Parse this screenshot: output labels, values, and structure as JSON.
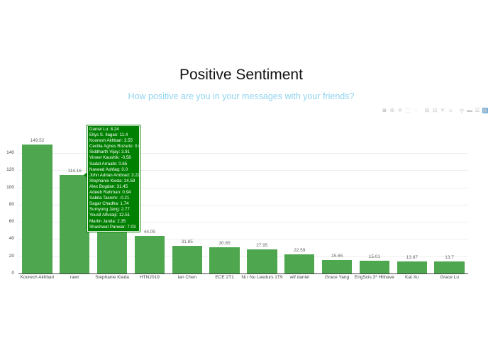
{
  "chart_data": {
    "type": "bar",
    "title": "Positive Sentiment",
    "subtitle": "How positive are you in your messages with your friends?",
    "xlabel": "",
    "ylabel": "",
    "ylim": [
      0,
      153
    ],
    "yticks": [
      0,
      20,
      40,
      60,
      80,
      100,
      120,
      140
    ],
    "grid": true,
    "bar_color": "#4ea64e",
    "categories": [
      "Koorесh Akhbari",
      "rawr",
      "Stephanie Kieda",
      "HTN2019",
      "Ian Chen",
      "ECE 2T1",
      "Ni / Nu Leedurs 1T9",
      "wtf daniel",
      "Grace Yang",
      "EngScis 3* Hhhave",
      "Kat Xu",
      "Grace Lu"
    ],
    "values": [
      149.52,
      114.16,
      50.41,
      44.05,
      31.85,
      30.65,
      27.95,
      22.59,
      15.65,
      15.01,
      13.87,
      13.7
    ],
    "value_labels": [
      "149.52",
      "114.16",
      "50.41",
      "44.05",
      "31.85",
      "30.65",
      "27.95",
      "22.59",
      "15.65",
      "15.01",
      "13.87",
      "13.7"
    ],
    "hover_tooltip": {
      "category": "rawr",
      "color": "#008000",
      "lines": [
        "Daniel Lu: 8.24",
        "Ellys S. Ilagan: 11.4",
        "Kooresh Akhbari: 3.55",
        "Cecilia Agnes Rozario: 0.6",
        "Siddharth Vijay: 3.91",
        "Vineet Kaushik: -0.58",
        "Sadat Arraafe: 0.65",
        "Naveed Ashfaq: 0.0",
        "John Adrian Ambrad: 3.22",
        "Stephanie Kieda: 24.59",
        "Alex Bogdan: 31.45",
        "Adeeb Rahman: 0.94",
        "Sabita Tasnim: -0.21",
        "Sagar Chadha: 1.74",
        "Sumyung Jang: 2.77",
        "Yousif Alfuraiji: 12.51",
        "Martin Janda: 2.35",
        "Shashwat Panwar: 7.03"
      ]
    }
  },
  "modebar": {
    "icons": [
      "camera-icon",
      "zoom-icon",
      "pan-icon",
      "box-select-icon",
      "lasso-icon",
      "zoom-in-icon",
      "zoom-out-icon",
      "autoscale-icon",
      "reset-axes-icon",
      "spike-lines-icon",
      "hover-closest-icon",
      "hover-compare-icon",
      "plotly-logo-icon"
    ],
    "glyphs": [
      "◙",
      "⊕",
      "✛",
      "⬚",
      "◌",
      "⊞",
      "⊟",
      "✕",
      "⌂",
      "╤",
      "▬",
      "☰",
      "▦"
    ]
  }
}
